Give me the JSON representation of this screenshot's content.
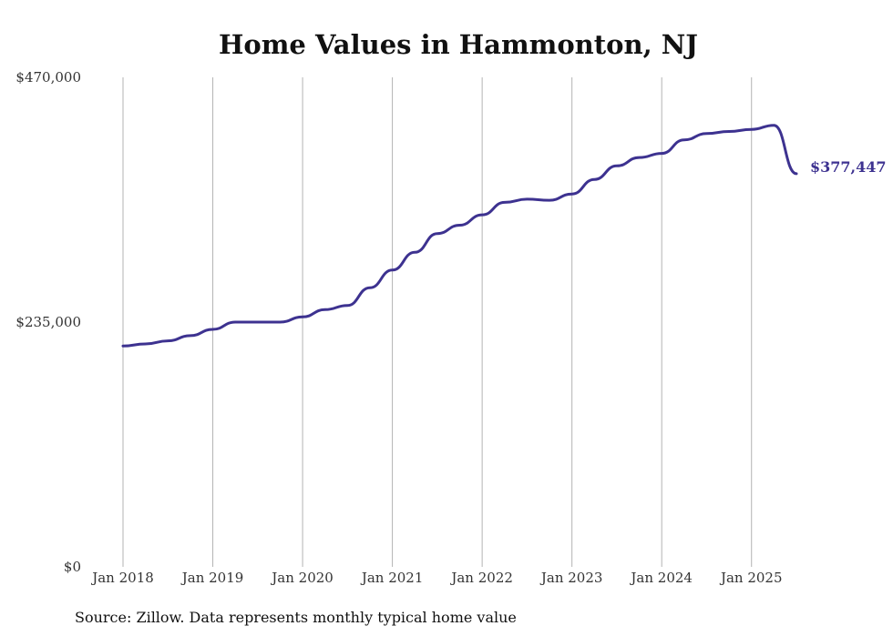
{
  "chart_data": {
    "type": "line",
    "title": "Home Values in Hammonton, NJ",
    "source": "Source: Zillow. Data represents monthly typical home value",
    "ylim": [
      0,
      470000
    ],
    "y_ticks": [
      {
        "value": 0,
        "label": "$0"
      },
      {
        "value": 235000,
        "label": "$235,000"
      },
      {
        "value": 470000,
        "label": "$470,000"
      }
    ],
    "x_ticks": [
      {
        "value": "2018-01",
        "label": "Jan 2018"
      },
      {
        "value": "2019-01",
        "label": "Jan 2019"
      },
      {
        "value": "2020-01",
        "label": "Jan 2020"
      },
      {
        "value": "2021-01",
        "label": "Jan 2021"
      },
      {
        "value": "2022-01",
        "label": "Jan 2022"
      },
      {
        "value": "2023-01",
        "label": "Jan 2023"
      },
      {
        "value": "2024-01",
        "label": "Jan 2024"
      },
      {
        "value": "2025-01",
        "label": "Jan 2025"
      }
    ],
    "xlim": [
      "2018-01",
      "2025-07"
    ],
    "grid": "vertical",
    "end_label": "$377,447",
    "line_color": "#3d3290",
    "series": [
      {
        "color": "#3d3290",
        "x": [
          "2018-01",
          "2018-04",
          "2018-07",
          "2018-10",
          "2019-01",
          "2019-04",
          "2019-07",
          "2019-10",
          "2020-01",
          "2020-04",
          "2020-07",
          "2020-10",
          "2021-01",
          "2021-04",
          "2021-07",
          "2021-10",
          "2022-01",
          "2022-04",
          "2022-07",
          "2022-10",
          "2023-01",
          "2023-04",
          "2023-07",
          "2023-10",
          "2024-01",
          "2024-04",
          "2024-07",
          "2024-10",
          "2025-01",
          "2025-04",
          "2025-07"
        ],
        "values": [
          212000,
          214000,
          217000,
          222000,
          228000,
          235000,
          235000,
          235000,
          240000,
          247000,
          251000,
          268000,
          285000,
          302000,
          320000,
          328000,
          338000,
          350000,
          353000,
          352000,
          358000,
          372000,
          385000,
          393000,
          397000,
          410000,
          416000,
          418000,
          420000,
          424000,
          377447
        ]
      }
    ]
  }
}
